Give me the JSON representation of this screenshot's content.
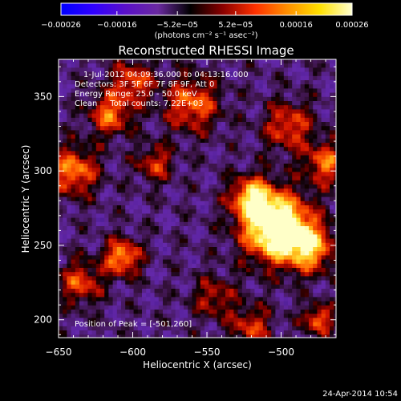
{
  "chart_data": {
    "type": "heatmap",
    "title": "Reconstructed RHESSI Image",
    "xlabel": "Heliocentric X (arcsec)",
    "ylabel": "Heliocentric Y (arcsec)",
    "xlim": [
      -650,
      -463
    ],
    "ylim": [
      188,
      375
    ],
    "x_ticks": [
      -650,
      -600,
      -550,
      -500
    ],
    "x_tick_labels": [
      "−650",
      "−600",
      "−550",
      "−500"
    ],
    "y_ticks": [
      200,
      250,
      300,
      350
    ],
    "y_tick_labels": [
      "200",
      "250",
      "300",
      "350"
    ],
    "colorbar": {
      "range": [
        -0.00026,
        0.00026
      ],
      "ticks": [
        -0.00026,
        -0.00016,
        -5.2e-05,
        5.2e-05,
        0.00016,
        0.00026
      ],
      "tick_labels": [
        "−0.00026",
        "−0.00016",
        "−5.2e−05",
        "5.2e−05",
        "0.00016",
        "0.00026"
      ],
      "unit_label": "(photons cm⁻² s⁻¹ asec⁻²)",
      "colormap": [
        "#0000ff",
        "#3000ff",
        "#5a10c8",
        "#6a2aa0",
        "#000000",
        "#8a0000",
        "#ff3000",
        "#ff9000",
        "#ffe000",
        "#ffffd0"
      ]
    },
    "annotations": [
      "1-Jul-2012 04:09:36.000 to 04:13:16.000",
      "Detectors: 3F 5F 6F 7F 8F 9F, Att 0",
      "Energy Range: 25.0 - 50.0 keV",
      "Clean     Total counts: 7.22E+03"
    ],
    "peak_label": "Position of Peak = [-501,260]",
    "peak": {
      "x": -501,
      "y": 260
    },
    "grid": false,
    "legend": "none"
  },
  "footer": {
    "date": "24-Apr-2014 10:54"
  }
}
